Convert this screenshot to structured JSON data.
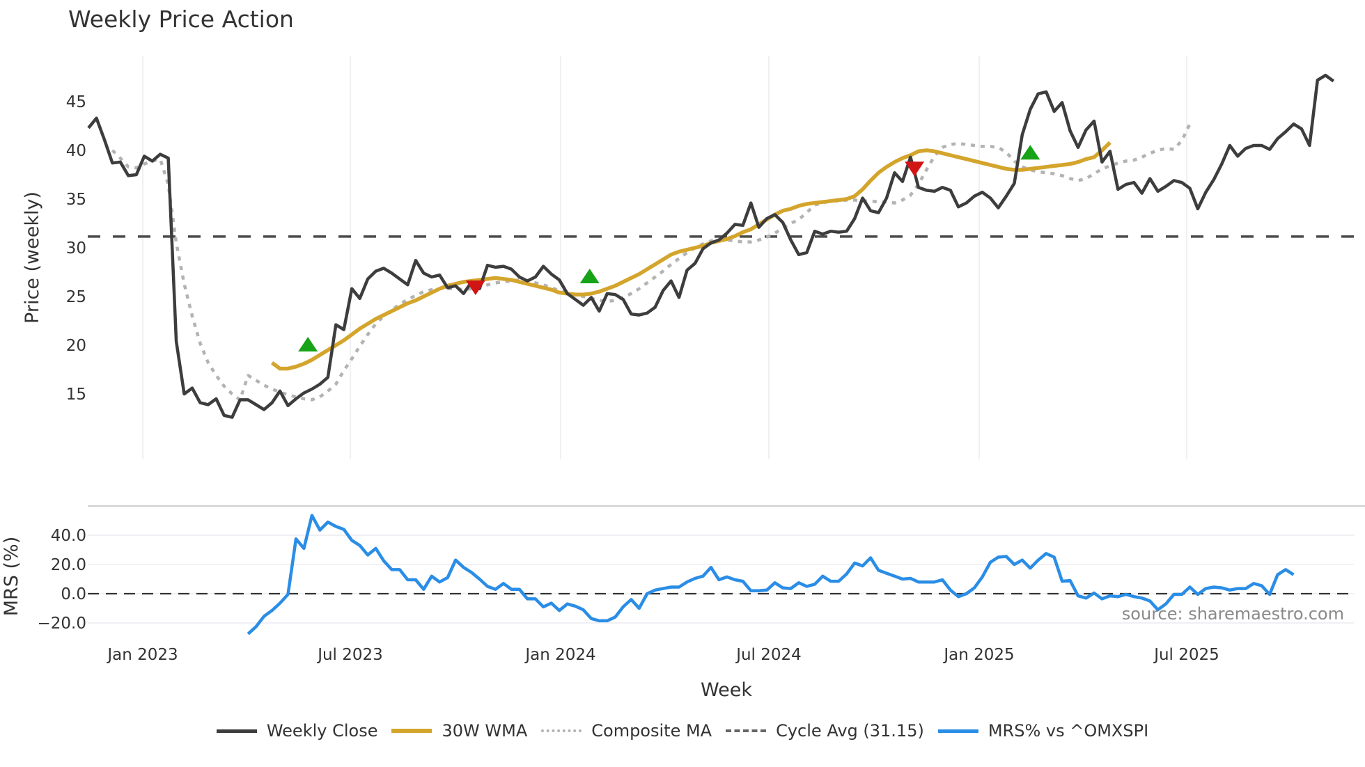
{
  "title": "Weekly Price Action",
  "source_note": "source: sharemaestro.com",
  "colors": {
    "weekly_close": "#3d3d3d",
    "wma30": "#d4a52c",
    "composite_ma": "#b3b3b3",
    "cycle_avg": "#4a4a4a",
    "mrs": "#2a8de6",
    "buy_marker": "#17a317",
    "sell_marker": "#d11414",
    "grid": "#ececf0"
  },
  "legend": [
    {
      "key": "weekly_close",
      "label": "Weekly Close",
      "style": "solid"
    },
    {
      "key": "wma30",
      "label": "30W WMA",
      "style": "solid"
    },
    {
      "key": "composite_ma",
      "label": "Composite MA",
      "style": "dotted"
    },
    {
      "key": "cycle_avg",
      "label": "Cycle Avg (31.15)",
      "style": "dashed"
    },
    {
      "key": "mrs",
      "label": "MRS% vs ^OMXSPI",
      "style": "solid"
    }
  ],
  "chart_data": [
    {
      "type": "line",
      "title": "Weekly Price Action",
      "xlabel": "Week",
      "ylabel": "Price (weekly)",
      "x_ticks": [
        "Jan 2023",
        "Jul 2023",
        "Jan 2024",
        "Jul 2024",
        "Jan 2025",
        "Jul 2025"
      ],
      "y_ticks": [
        15,
        20,
        25,
        30,
        35,
        40,
        45
      ],
      "ylim": [
        11,
        49.5
      ],
      "grid": "vertical",
      "x_start_offset_weeks": -6.8,
      "series": [
        {
          "name": "Weekly Close",
          "values": [
            42.3,
            43.3,
            41.1,
            38.7,
            38.8,
            37.4,
            37.5,
            39.4,
            38.9,
            39.6,
            39.2,
            20.4,
            15.0,
            15.6,
            14.1,
            13.9,
            14.5,
            12.8,
            12.6,
            14.4,
            14.4,
            13.9,
            13.4,
            14.1,
            15.3,
            13.8,
            14.5,
            15.1,
            15.5,
            16.0,
            16.7,
            22.1,
            21.6,
            25.8,
            24.8,
            26.8,
            27.6,
            27.9,
            27.4,
            26.8,
            26.2,
            28.7,
            27.4,
            27.0,
            27.2,
            25.9,
            26.1,
            25.3,
            26.5,
            25.8,
            28.2,
            28.0,
            28.1,
            27.8,
            27.0,
            26.6,
            27.0,
            28.1,
            27.3,
            26.7,
            25.3,
            24.7,
            24.1,
            24.9,
            23.5,
            25.3,
            25.2,
            24.7,
            23.2,
            23.1,
            23.3,
            23.9,
            25.6,
            26.6,
            24.9,
            27.7,
            28.4,
            29.9,
            30.5,
            30.8,
            31.5,
            32.4,
            32.3,
            34.6,
            32.1,
            33.0,
            33.4,
            32.6,
            30.8,
            29.3,
            29.5,
            31.7,
            31.4,
            31.7,
            31.6,
            31.7,
            33.0,
            35.1,
            33.8,
            33.6,
            35.1,
            37.7,
            36.8,
            39.3,
            36.2,
            35.9,
            35.8,
            36.2,
            35.9,
            34.2,
            34.6,
            35.3,
            35.7,
            35.1,
            34.1,
            35.3,
            36.6,
            41.6,
            44.2,
            45.8,
            46.0,
            44.0,
            44.9,
            42.0,
            40.3,
            42.1,
            43.0,
            38.8,
            39.9,
            36.0,
            36.5,
            36.7,
            35.6,
            37.1,
            35.8,
            36.3,
            36.9,
            36.7,
            36.1,
            34.0,
            35.7,
            37.0,
            38.6,
            40.5,
            39.4,
            40.2,
            40.5,
            40.5,
            40.1,
            41.2,
            41.9,
            42.7,
            42.2,
            40.5,
            47.2,
            47.7,
            47.1
          ]
        },
        {
          "name": "30W WMA",
          "start_index": 23,
          "values": [
            18.2,
            17.6,
            17.6,
            17.8,
            18.1,
            18.5,
            19.0,
            19.5,
            20.0,
            20.5,
            21.1,
            21.7,
            22.2,
            22.7,
            23.1,
            23.5,
            23.9,
            24.3,
            24.6,
            25.0,
            25.4,
            25.8,
            26.1,
            26.3,
            26.5,
            26.6,
            26.7,
            26.8,
            26.9,
            26.8,
            26.7,
            26.5,
            26.3,
            26.1,
            25.9,
            25.7,
            25.4,
            25.3,
            25.2,
            25.2,
            25.3,
            25.5,
            25.8,
            26.1,
            26.5,
            26.9,
            27.3,
            27.8,
            28.3,
            28.8,
            29.3,
            29.6,
            29.8,
            30.0,
            30.2,
            30.5,
            30.7,
            30.9,
            31.2,
            31.6,
            31.9,
            32.4,
            32.9,
            33.4,
            33.8,
            34.0,
            34.3,
            34.5,
            34.6,
            34.7,
            34.8,
            34.9,
            35.0,
            35.3,
            36.0,
            36.9,
            37.7,
            38.3,
            38.8,
            39.2,
            39.5,
            39.9,
            40.0,
            39.9,
            39.7,
            39.5,
            39.3,
            39.1,
            38.9,
            38.7,
            38.5,
            38.3,
            38.1,
            38.0,
            38.0,
            38.1,
            38.2,
            38.3,
            38.4,
            38.5,
            38.6,
            38.8,
            39.1,
            39.3,
            40.0,
            40.8
          ]
        },
        {
          "name": "Composite MA",
          "start_index": 3,
          "values": [
            40.0,
            39.2,
            38.3,
            38.2,
            38.6,
            38.9,
            39.1,
            36.5,
            30.5,
            26.3,
            23.0,
            20.2,
            18.2,
            16.9,
            15.8,
            15.0,
            14.4,
            16.9,
            16.4,
            15.9,
            15.5,
            15.2,
            14.9,
            14.7,
            14.5,
            14.4,
            14.7,
            15.3,
            16.0,
            17.4,
            18.6,
            19.9,
            21.1,
            22.2,
            23.0,
            23.6,
            24.2,
            24.7,
            25.1,
            25.5,
            25.7,
            25.8,
            25.8,
            25.8,
            25.7,
            25.8,
            25.9,
            26.2,
            26.4,
            26.5,
            26.6,
            26.7,
            26.6,
            26.4,
            26.2,
            25.9,
            25.6,
            25.4,
            25.2,
            25.0,
            24.8,
            24.6,
            24.5,
            24.6,
            24.9,
            25.3,
            25.8,
            26.4,
            27.0,
            27.6,
            28.3,
            28.9,
            29.5,
            30.0,
            30.4,
            30.7,
            30.9,
            30.8,
            30.7,
            30.6,
            30.6,
            30.8,
            31.1,
            31.5,
            32.0,
            32.5,
            32.9,
            33.6,
            34.4,
            34.6,
            34.8,
            34.8,
            34.9,
            34.9,
            34.8,
            34.8,
            34.7,
            34.7,
            34.6,
            34.9,
            35.4,
            36.5,
            38.0,
            39.4,
            40.3,
            40.6,
            40.7,
            40.6,
            40.5,
            40.4,
            40.4,
            40.3,
            39.8,
            38.9,
            38.3,
            38.0,
            37.8,
            37.7,
            37.6,
            37.4,
            37.1,
            36.9,
            37.1,
            37.6,
            38.1,
            38.4,
            38.7,
            38.9,
            39.0,
            39.3,
            39.7,
            40.0,
            40.2,
            40.1,
            41.0,
            42.7
          ]
        },
        {
          "name": "Cycle Avg (31.15)",
          "values": [
            31.15
          ]
        }
      ],
      "markers": [
        {
          "type": "buy",
          "index": 27.5,
          "value": 20.0
        },
        {
          "type": "sell",
          "index": 48.5,
          "value": 26.0
        },
        {
          "type": "buy",
          "index": 62.8,
          "value": 27.0
        },
        {
          "type": "sell",
          "index": 103.5,
          "value": 38.2
        },
        {
          "type": "buy",
          "index": 118,
          "value": 39.7
        }
      ]
    },
    {
      "type": "line",
      "ylabel": "MRS (%)",
      "y_ticks": [
        -20.0,
        0.0,
        20.0,
        40.0
      ],
      "ylim": [
        -30,
        60
      ],
      "reference_line": 0.0,
      "series": [
        {
          "name": "MRS% vs ^OMXSPI",
          "start_index": 20,
          "values": [
            -27.5,
            -22.5,
            -15.5,
            -11.5,
            -6.5,
            -0.5,
            37.5,
            31.0,
            53.5,
            43.5,
            49.0,
            46.0,
            44.0,
            36.5,
            33.0,
            26.5,
            31.0,
            22.5,
            16.5,
            16.5,
            9.5,
            9.5,
            3.0,
            12.0,
            8.0,
            11.0,
            23.0,
            18.0,
            14.5,
            10.0,
            5.0,
            3.0,
            7.0,
            3.0,
            3.0,
            -3.5,
            -3.5,
            -9.0,
            -6.5,
            -11.5,
            -7.0,
            -8.5,
            -11.0,
            -17.0,
            -18.5,
            -18.5,
            -16.0,
            -9.0,
            -4.0,
            -10.0,
            0.0,
            2.5,
            3.5,
            4.5,
            4.5,
            8.0,
            10.5,
            12.0,
            18.0,
            9.5,
            11.5,
            9.5,
            8.5,
            2.0,
            2.0,
            2.5,
            7.5,
            4.0,
            3.5,
            7.5,
            5.0,
            6.5,
            12.0,
            8.5,
            8.5,
            13.5,
            21.0,
            19.0,
            24.5,
            16.0,
            14.0,
            12.0,
            10.0,
            10.5,
            8.0,
            8.0,
            8.0,
            9.5,
            2.5,
            -2.0,
            0.0,
            4.0,
            11.5,
            21.5,
            25.0,
            25.5,
            20.0,
            23.0,
            17.5,
            23.0,
            27.5,
            25.0,
            8.5,
            9.0,
            -1.5,
            -3.0,
            0.5,
            -3.5,
            -1.5,
            -2.0,
            -0.5,
            -2.0,
            -3.0,
            -5.0,
            -11.0,
            -7.0,
            -0.5,
            -0.5,
            4.5,
            -0.5,
            3.5,
            4.5,
            4.0,
            2.5,
            3.5,
            3.5,
            7.0,
            5.5,
            -0.5,
            13.0,
            16.5,
            13.0
          ]
        }
      ]
    }
  ]
}
